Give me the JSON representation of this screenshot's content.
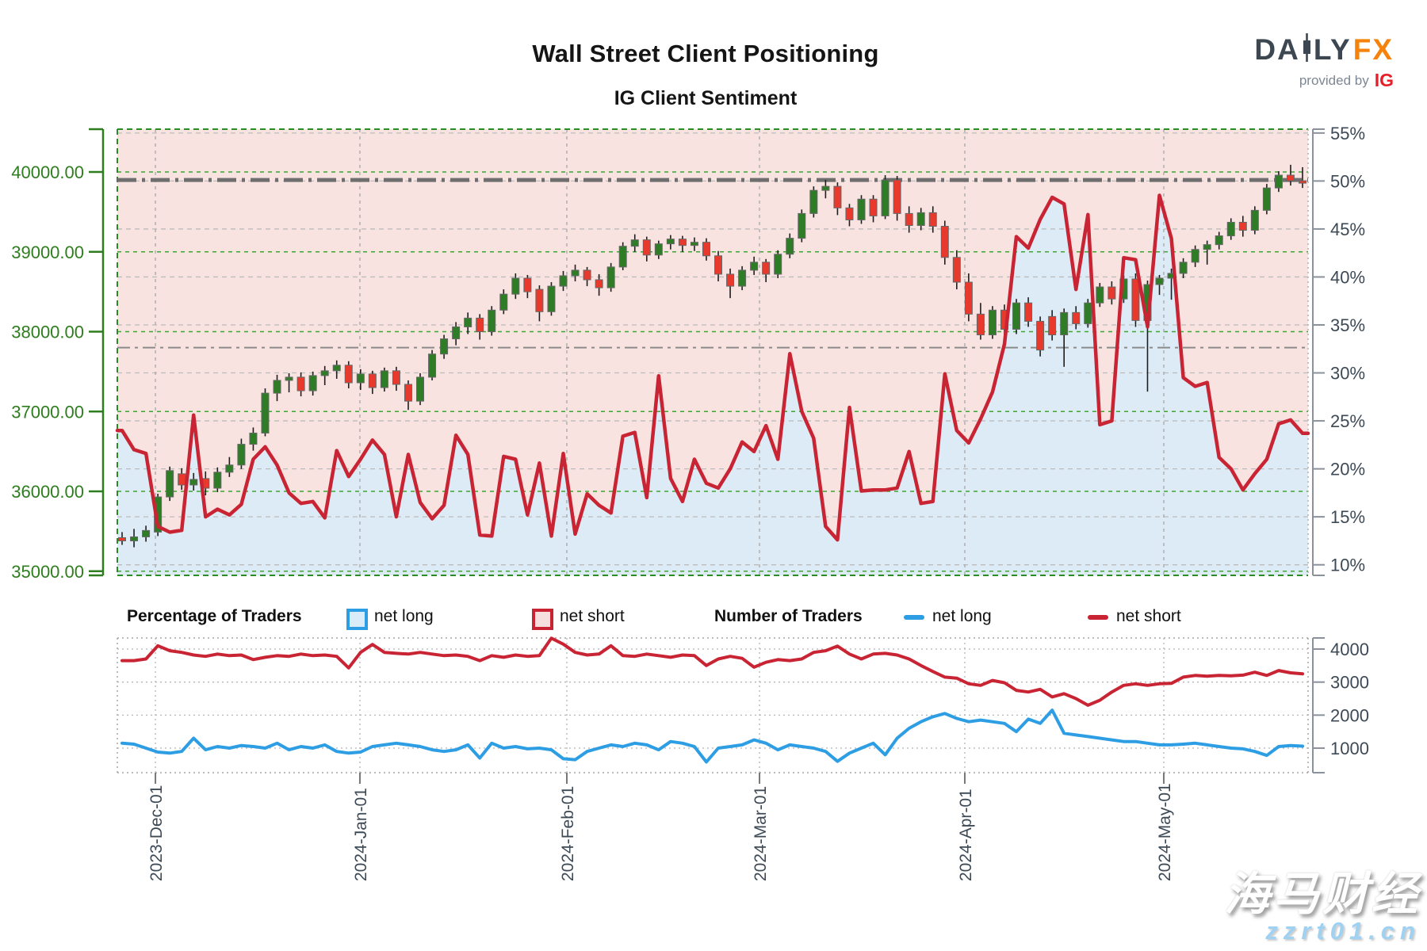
{
  "header": {
    "title": "Wall Street Client Positioning",
    "subtitle": "IG Client Sentiment"
  },
  "logo": {
    "da": "DA",
    "ly": "LY",
    "fx": "FX",
    "provided_by": "provided by",
    "ig": "IG"
  },
  "legend": {
    "percent_label": "Percentage of Traders",
    "percent_net_long": "net long",
    "percent_net_short": "net short",
    "number_label": "Number of Traders",
    "number_net_long": "net long",
    "number_net_short": "net short"
  },
  "watermark": {
    "line1": "海马财经",
    "line2": "zzrt01.cn"
  },
  "colors": {
    "net_long_blue": "#2e9ee4",
    "net_short_red": "#c92433",
    "candle_up_green": "#2e7d26",
    "candle_down_red": "#e8392c",
    "price_axis_green": "#2e7d1e",
    "pct_axis_slate": "#3d4a56",
    "short_fill_pink": "#f8e3e1",
    "long_fill_blue": "#dcebf6",
    "grid_green": "#44a038",
    "grid_gray": "#bcbcbc",
    "logo_orange": "#f5820b",
    "logo_slate": "#3d4752",
    "ig_red": "#e61e28"
  },
  "chart_data": [
    {
      "type": "candlestick+line",
      "name": "wall-street-price-with-net-short-percentage",
      "price_axis": {
        "side": "left",
        "ticks": [
          35000,
          36000,
          37000,
          38000,
          39000,
          40000
        ],
        "range": [
          34948,
          40536
        ],
        "format": "2dp"
      },
      "pct_axis": {
        "side": "right",
        "ticks": [
          10,
          15,
          20,
          25,
          30,
          35,
          40,
          45,
          50,
          55
        ],
        "range": [
          8.9,
          55.4
        ],
        "suffix": "%"
      },
      "x_ticks": [
        {
          "label": "2023-Dec-01",
          "f": 0.032
        },
        {
          "label": "2024-Jan-01",
          "f": 0.2037
        },
        {
          "label": "2024-Feb-01",
          "f": 0.3775
        },
        {
          "label": "2024-Mar-01",
          "f": 0.5393
        },
        {
          "label": "2024-Apr-01",
          "f": 0.7117
        },
        {
          "label": "2024-May-01",
          "f": 0.8788
        }
      ],
      "reference_lines": [
        {
          "price": 39900,
          "weight": "thick"
        },
        {
          "price": 37800,
          "weight": "thin"
        }
      ],
      "candles_ohlc": [
        [
          35420,
          35490,
          35330,
          35380
        ],
        [
          35380,
          35530,
          35300,
          35430
        ],
        [
          35430,
          35570,
          35370,
          35510
        ],
        [
          35490,
          35970,
          35440,
          35930
        ],
        [
          35930,
          36310,
          35880,
          36260
        ],
        [
          36220,
          36290,
          36020,
          36080
        ],
        [
          36080,
          36230,
          36010,
          36150
        ],
        [
          36160,
          36250,
          35950,
          36040
        ],
        [
          36040,
          36300,
          35990,
          36240
        ],
        [
          36240,
          36430,
          36180,
          36330
        ],
        [
          36330,
          36660,
          36280,
          36590
        ],
        [
          36590,
          36800,
          36510,
          36730
        ],
        [
          36730,
          37290,
          36690,
          37230
        ],
        [
          37230,
          37460,
          37130,
          37390
        ],
        [
          37390,
          37480,
          37240,
          37430
        ],
        [
          37430,
          37490,
          37190,
          37260
        ],
        [
          37260,
          37500,
          37200,
          37450
        ],
        [
          37450,
          37570,
          37330,
          37510
        ],
        [
          37510,
          37640,
          37410,
          37580
        ],
        [
          37580,
          37630,
          37290,
          37360
        ],
        [
          37360,
          37530,
          37270,
          37470
        ],
        [
          37470,
          37510,
          37220,
          37300
        ],
        [
          37300,
          37550,
          37250,
          37510
        ],
        [
          37510,
          37560,
          37260,
          37340
        ],
        [
          37340,
          37390,
          37020,
          37130
        ],
        [
          37130,
          37480,
          37080,
          37430
        ],
        [
          37430,
          37770,
          37390,
          37720
        ],
        [
          37720,
          37960,
          37660,
          37910
        ],
        [
          37910,
          38120,
          37830,
          38060
        ],
        [
          38060,
          38240,
          37970,
          38170
        ],
        [
          38170,
          38220,
          37900,
          38000
        ],
        [
          38000,
          38320,
          37950,
          38270
        ],
        [
          38270,
          38530,
          38220,
          38470
        ],
        [
          38470,
          38730,
          38410,
          38670
        ],
        [
          38670,
          38710,
          38420,
          38500
        ],
        [
          38530,
          38580,
          38130,
          38250
        ],
        [
          38250,
          38620,
          38200,
          38570
        ],
        [
          38570,
          38760,
          38510,
          38700
        ],
        [
          38700,
          38840,
          38630,
          38770
        ],
        [
          38770,
          38810,
          38570,
          38650
        ],
        [
          38650,
          38720,
          38450,
          38550
        ],
        [
          38550,
          38860,
          38500,
          38810
        ],
        [
          38810,
          39120,
          38770,
          39070
        ],
        [
          39070,
          39220,
          39000,
          39150
        ],
        [
          39150,
          39190,
          38880,
          38960
        ],
        [
          38960,
          39140,
          38910,
          39100
        ],
        [
          39100,
          39210,
          39030,
          39160
        ],
        [
          39160,
          39200,
          39000,
          39080
        ],
        [
          39080,
          39180,
          39010,
          39120
        ],
        [
          39120,
          39170,
          38890,
          38950
        ],
        [
          38950,
          39010,
          38630,
          38720
        ],
        [
          38720,
          38790,
          38420,
          38570
        ],
        [
          38570,
          38820,
          38520,
          38770
        ],
        [
          38770,
          38940,
          38710,
          38870
        ],
        [
          38870,
          38910,
          38620,
          38720
        ],
        [
          38720,
          39020,
          38670,
          38970
        ],
        [
          38970,
          39230,
          38920,
          39170
        ],
        [
          39170,
          39530,
          39120,
          39480
        ],
        [
          39480,
          39820,
          39430,
          39770
        ],
        [
          39770,
          39900,
          39670,
          39820
        ],
        [
          39820,
          39870,
          39460,
          39550
        ],
        [
          39550,
          39600,
          39320,
          39400
        ],
        [
          39400,
          39710,
          39350,
          39660
        ],
        [
          39660,
          39710,
          39370,
          39450
        ],
        [
          39450,
          39960,
          39410,
          39900
        ],
        [
          39900,
          39950,
          39390,
          39480
        ],
        [
          39480,
          39570,
          39240,
          39330
        ],
        [
          39330,
          39550,
          39270,
          39490
        ],
        [
          39490,
          39570,
          39240,
          39320
        ],
        [
          39320,
          39390,
          38840,
          38930
        ],
        [
          38930,
          39020,
          38530,
          38620
        ],
        [
          38620,
          38730,
          38130,
          38220
        ],
        [
          38220,
          38360,
          37900,
          37960
        ],
        [
          37960,
          38320,
          37910,
          38270
        ],
        [
          38270,
          38340,
          37960,
          38030
        ],
        [
          38030,
          38410,
          37970,
          38360
        ],
        [
          38360,
          38430,
          38060,
          38130
        ],
        [
          38130,
          38190,
          37690,
          37770
        ],
        [
          38190,
          38270,
          37890,
          37960
        ],
        [
          37960,
          38290,
          37560,
          38240
        ],
        [
          38240,
          38320,
          38030,
          38100
        ],
        [
          38100,
          38410,
          38050,
          38360
        ],
        [
          38360,
          38610,
          38310,
          38560
        ],
        [
          38560,
          38630,
          38340,
          38410
        ],
        [
          38410,
          38710,
          38360,
          38660
        ],
        [
          38660,
          38730,
          38060,
          38140
        ],
        [
          38140,
          38640,
          37250,
          38590
        ],
        [
          38590,
          38710,
          38460,
          38670
        ],
        [
          38670,
          38790,
          38400,
          38730
        ],
        [
          38730,
          38920,
          38670,
          38870
        ],
        [
          38870,
          39080,
          38810,
          39030
        ],
        [
          39030,
          39140,
          38840,
          39090
        ],
        [
          39090,
          39250,
          39030,
          39200
        ],
        [
          39200,
          39420,
          39150,
          39370
        ],
        [
          39370,
          39450,
          39190,
          39270
        ],
        [
          39270,
          39570,
          39220,
          39520
        ],
        [
          39520,
          39850,
          39470,
          39800
        ],
        [
          39800,
          40010,
          39750,
          39960
        ],
        [
          39960,
          40090,
          39830,
          39890
        ],
        [
          39890,
          40060,
          39800,
          39860
        ]
      ],
      "net_short_pct": [
        24.0,
        22.0,
        21.6,
        14.0,
        13.4,
        13.6,
        25.6,
        15.0,
        15.8,
        15.2,
        16.3,
        21.0,
        22.3,
        20.4,
        17.5,
        16.4,
        16.6,
        14.9,
        21.9,
        19.2,
        21.0,
        23.0,
        21.5,
        15.0,
        21.5,
        16.5,
        14.8,
        16.2,
        23.5,
        21.5,
        13.1,
        13.0,
        21.3,
        21.0,
        15.2,
        20.6,
        13.0,
        21.6,
        13.2,
        17.4,
        16.2,
        15.4,
        23.4,
        23.8,
        17.0,
        29.7,
        19.0,
        16.6,
        21.0,
        18.5,
        18.0,
        20.0,
        22.8,
        21.8,
        24.5,
        21.0,
        32.0,
        26.0,
        23.2,
        14.0,
        12.6,
        26.4,
        17.7,
        17.8,
        17.8,
        18.0,
        21.8,
        16.4,
        16.6,
        29.9,
        24.0,
        22.7,
        25.2,
        28.0,
        33.0,
        44.2,
        43.0,
        46.0,
        48.3,
        47.6,
        38.7,
        46.5,
        24.6,
        25.0,
        42.0,
        41.8,
        34.8,
        48.5,
        44.0,
        29.5,
        28.6,
        29.0,
        21.2,
        20.0,
        17.8,
        19.5,
        21.0,
        24.7,
        25.1,
        23.7
      ]
    },
    {
      "type": "line",
      "name": "number-of-traders",
      "y_axis": {
        "side": "right",
        "ticks": [
          1000,
          2000,
          3000,
          4000
        ],
        "range": [
          257,
          4336
        ]
      },
      "series": [
        {
          "name": "net long",
          "color": "#2e9ee4",
          "values": [
            1150,
            1120,
            1000,
            880,
            850,
            900,
            1300,
            950,
            1050,
            1000,
            1080,
            1050,
            1000,
            1150,
            950,
            1050,
            1000,
            1100,
            900,
            850,
            880,
            1050,
            1100,
            1150,
            1100,
            1050,
            950,
            900,
            950,
            1100,
            700,
            1150,
            1000,
            1050,
            980,
            1000,
            950,
            680,
            650,
            900,
            1000,
            1100,
            1050,
            1150,
            1100,
            950,
            1200,
            1150,
            1050,
            580,
            1000,
            1050,
            1100,
            1250,
            1150,
            950,
            1100,
            1050,
            1000,
            900,
            600,
            850,
            1000,
            1150,
            800,
            1300,
            1600,
            1800,
            1950,
            2050,
            1900,
            1800,
            1850,
            1800,
            1750,
            1500,
            1880,
            1750,
            2150,
            1450,
            1400,
            1350,
            1300,
            1250,
            1200,
            1200,
            1150,
            1100,
            1100,
            1120,
            1150,
            1100,
            1050,
            1000,
            980,
            900,
            780,
            1050,
            1080,
            1060
          ]
        },
        {
          "name": "net short",
          "color": "#c92433",
          "values": [
            3650,
            3650,
            3700,
            4100,
            3950,
            3900,
            3820,
            3780,
            3850,
            3800,
            3820,
            3680,
            3750,
            3800,
            3780,
            3850,
            3800,
            3820,
            3780,
            3430,
            3900,
            4140,
            3900,
            3870,
            3850,
            3900,
            3850,
            3800,
            3820,
            3780,
            3650,
            3800,
            3750,
            3820,
            3780,
            3800,
            4330,
            4150,
            3900,
            3820,
            3850,
            4100,
            3800,
            3780,
            3850,
            3800,
            3750,
            3820,
            3800,
            3500,
            3700,
            3780,
            3720,
            3450,
            3600,
            3680,
            3650,
            3700,
            3900,
            3950,
            4090,
            3850,
            3700,
            3850,
            3870,
            3820,
            3700,
            3500,
            3320,
            3150,
            3120,
            2950,
            2900,
            3050,
            2980,
            2750,
            2700,
            2780,
            2550,
            2650,
            2500,
            2300,
            2450,
            2700,
            2900,
            2950,
            2900,
            2950,
            2960,
            3150,
            3200,
            3180,
            3200,
            3190,
            3210,
            3300,
            3200,
            3350,
            3280,
            3250
          ]
        }
      ]
    }
  ]
}
